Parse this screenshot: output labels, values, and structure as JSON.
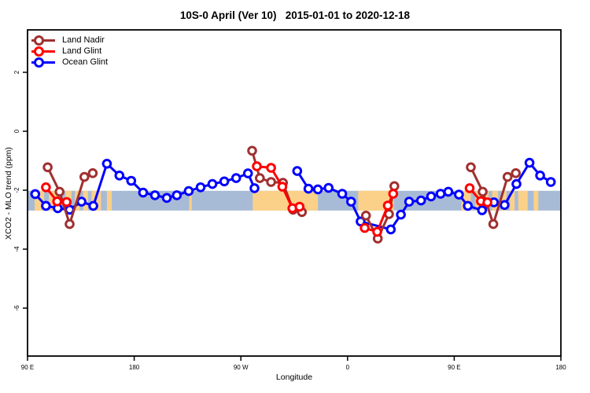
{
  "chart_data": {
    "type": "line",
    "title": "10S-0 April (Ver 10)   2015-01-01 to 2020-12-18",
    "xlabel": "Longitude",
    "ylabel": "XCO2 - MLO trend (ppm)",
    "legend_position": "top-left",
    "grid": false,
    "x_axis": {
      "ticks": [
        90,
        180,
        270,
        360,
        450,
        540
      ],
      "tick_labels": [
        "90 E",
        "180",
        "90 W",
        "0",
        "90 E",
        "180"
      ],
      "range": [
        90,
        540
      ]
    },
    "y_axis": {
      "ticks": [
        2,
        0,
        -2,
        -4,
        -6
      ],
      "tick_labels": [
        "2",
        "0",
        "-2",
        "-4",
        "-6"
      ],
      "range": [
        3.4,
        -7.6
      ]
    },
    "map_band": {
      "description": "world map strip for 10S-0 latitude band",
      "ocean_color": "#A8BBD6",
      "land_color": "#FBD189",
      "value_top": -2.02,
      "value_bottom": -2.69,
      "land_segments_lon": [
        [
          96,
          104
        ],
        [
          108,
          119
        ],
        [
          122,
          127
        ],
        [
          130,
          134
        ],
        [
          137,
          141
        ],
        [
          144,
          152
        ],
        [
          157,
          161
        ],
        [
          226.5,
          228.5
        ],
        [
          280,
          335
        ],
        [
          369,
          399
        ],
        [
          456,
          464
        ],
        [
          468,
          479
        ],
        [
          482,
          487
        ],
        [
          490,
          494
        ],
        [
          497,
          501
        ],
        [
          504,
          512
        ],
        [
          517,
          521
        ]
      ]
    },
    "legend": [
      {
        "label": "Land Nadir",
        "color": "#A03030"
      },
      {
        "label": "Land Glint",
        "color": "#FF0000"
      },
      {
        "label": "Ocean Glint",
        "color": "#0000FF"
      }
    ],
    "series": [
      {
        "name": "Land Nadir",
        "color": "#A03030",
        "segments": [
          [
            [
              107,
              -1.22
            ],
            [
              117,
              -2.05
            ],
            [
              125.5,
              -3.15
            ],
            [
              138,
              -1.55
            ],
            [
              145,
              -1.42
            ]
          ],
          [
            [
              279.5,
              -0.66
            ],
            [
              286,
              -1.59
            ],
            [
              295.5,
              -1.72
            ],
            [
              305.5,
              -1.75
            ],
            [
              314,
              -2.66
            ],
            [
              321.5,
              -2.74
            ]
          ],
          [
            [
              375.5,
              -2.86
            ],
            [
              385.5,
              -3.64
            ],
            [
              395,
              -2.81
            ],
            [
              399.5,
              -1.86
            ]
          ],
          [
            [
              464,
              -1.22
            ],
            [
              474,
              -2.05
            ],
            [
              483,
              -3.15
            ],
            [
              495,
              -1.55
            ],
            [
              502,
              -1.42
            ]
          ]
        ]
      },
      {
        "name": "Land Glint",
        "color": "#FF0000",
        "segments": [
          [
            [
              105.5,
              -1.9
            ],
            [
              115,
              -2.38
            ],
            [
              123,
              -2.4
            ]
          ],
          [
            [
              283.5,
              -1.19
            ],
            [
              295.5,
              -1.24
            ],
            [
              305,
              -1.88
            ],
            [
              313.5,
              -2.61
            ],
            [
              319.5,
              -2.56
            ]
          ],
          [
            [
              374.5,
              -3.28
            ],
            [
              385,
              -3.41
            ],
            [
              394,
              -2.52
            ],
            [
              398.5,
              -2.12
            ]
          ],
          [
            [
              463,
              -1.93
            ],
            [
              472.5,
              -2.37
            ],
            [
              478,
              -2.41
            ]
          ]
        ]
      },
      {
        "name": "Ocean Glint",
        "color": "#0000FF",
        "segments": [
          [
            [
              96.5,
              -2.13
            ],
            [
              105.5,
              -2.53
            ],
            [
              115.5,
              -2.61
            ],
            [
              125.5,
              -2.66
            ],
            [
              135.5,
              -2.39
            ],
            [
              145.5,
              -2.53
            ],
            [
              157,
              -1.1
            ],
            [
              167.5,
              -1.5
            ],
            [
              177.5,
              -1.68
            ],
            [
              187.5,
              -2.08
            ],
            [
              197.5,
              -2.17
            ],
            [
              207.5,
              -2.26
            ],
            [
              216,
              -2.17
            ],
            [
              226,
              -2.03
            ],
            [
              236,
              -1.9
            ],
            [
              246,
              -1.79
            ],
            [
              256,
              -1.7
            ],
            [
              266,
              -1.59
            ],
            [
              276,
              -1.43
            ],
            [
              281.5,
              -1.93
            ]
          ],
          [
            [
              317.5,
              -1.35
            ],
            [
              327,
              -1.95
            ],
            [
              335,
              -1.97
            ],
            [
              344,
              -1.92
            ],
            [
              355.5,
              -2.12
            ],
            [
              363,
              -2.39
            ],
            [
              371,
              -3.06
            ],
            [
              396.5,
              -3.33
            ],
            [
              405,
              -2.83
            ],
            [
              412,
              -2.39
            ],
            [
              422,
              -2.35
            ],
            [
              430.5,
              -2.21
            ],
            [
              438.5,
              -2.12
            ],
            [
              445,
              -2.05
            ],
            [
              454,
              -2.15
            ],
            [
              461.5,
              -2.53
            ],
            [
              473.5,
              -2.68
            ],
            [
              483.5,
              -2.41
            ],
            [
              492.5,
              -2.5
            ],
            [
              502.5,
              -1.79
            ],
            [
              513.5,
              -1.07
            ],
            [
              522.5,
              -1.5
            ],
            [
              531.5,
              -1.72
            ]
          ]
        ]
      }
    ],
    "draw_order": [
      2,
      0,
      1
    ]
  }
}
